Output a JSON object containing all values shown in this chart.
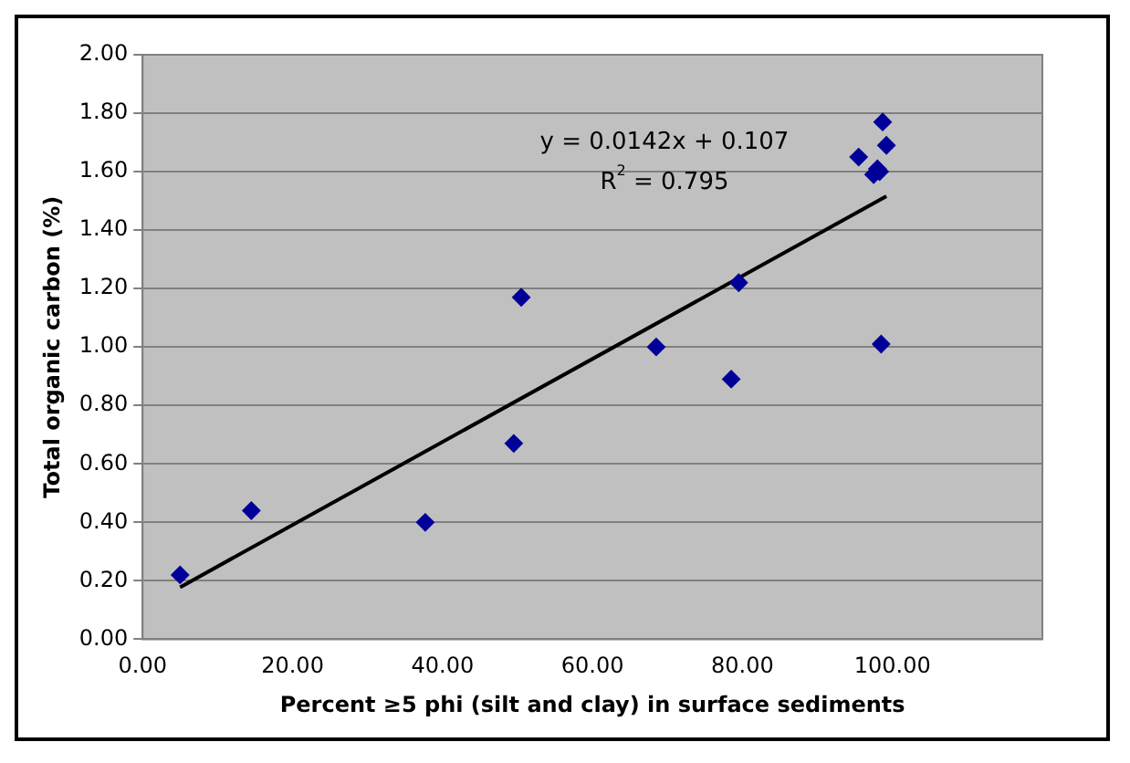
{
  "chart_data": {
    "type": "scatter",
    "xlabel": "Percent ≥5 phi (silt and clay) in surface sediments",
    "ylabel": "Total organic carbon (%)",
    "series": [
      {
        "color": "#000099",
        "marker": "diamond",
        "x": [
          5,
          14.5,
          37.7,
          49.5,
          50.5,
          68.5,
          78.5,
          79.5,
          95.5,
          97.5,
          98,
          98.5,
          98.7,
          99.2,
          98.3
        ],
        "values": [
          0.22,
          0.44,
          0.4,
          0.67,
          1.17,
          1.0,
          0.89,
          1.22,
          1.65,
          1.59,
          1.61,
          1.01,
          1.77,
          1.69,
          1.6
        ]
      },
      {
        "type": "line",
        "color": "#000000",
        "marker": "none",
        "x": [
          5,
          99.2
        ],
        "values": [
          0.178,
          1.516
        ]
      }
    ],
    "annotations": [
      "y = 0.0142x + 0.107",
      "R$^{2}$ = 0.795"
    ],
    "xlim": [
      0,
      120
    ],
    "ylim": [
      0,
      2
    ],
    "xticks": [
      {
        "value": 0,
        "label": "0.00"
      },
      {
        "value": 20,
        "label": "20.00"
      },
      {
        "value": 40,
        "label": "40.00"
      },
      {
        "value": 60,
        "label": "60.00"
      },
      {
        "value": 80,
        "label": "80.00"
      },
      {
        "value": 100,
        "label": "100.00"
      },
      {
        "value": 120,
        "label": null
      }
    ],
    "yticks": [
      {
        "value": 0,
        "label": "0.00"
      },
      {
        "value": 0.2,
        "label": "0.20"
      },
      {
        "value": 0.4,
        "label": "0.40"
      },
      {
        "value": 0.6,
        "label": "0.60"
      },
      {
        "value": 0.8,
        "label": "0.80"
      },
      {
        "value": 1,
        "label": "1.00"
      },
      {
        "value": 1.2,
        "label": "1.20"
      },
      {
        "value": 1.4,
        "label": "1.40"
      },
      {
        "value": 1.6,
        "label": "1.60"
      },
      {
        "value": 1.8,
        "label": "1.80"
      },
      {
        "value": 2,
        "label": "2.00"
      }
    ],
    "grid": "y",
    "legend": false
  }
}
